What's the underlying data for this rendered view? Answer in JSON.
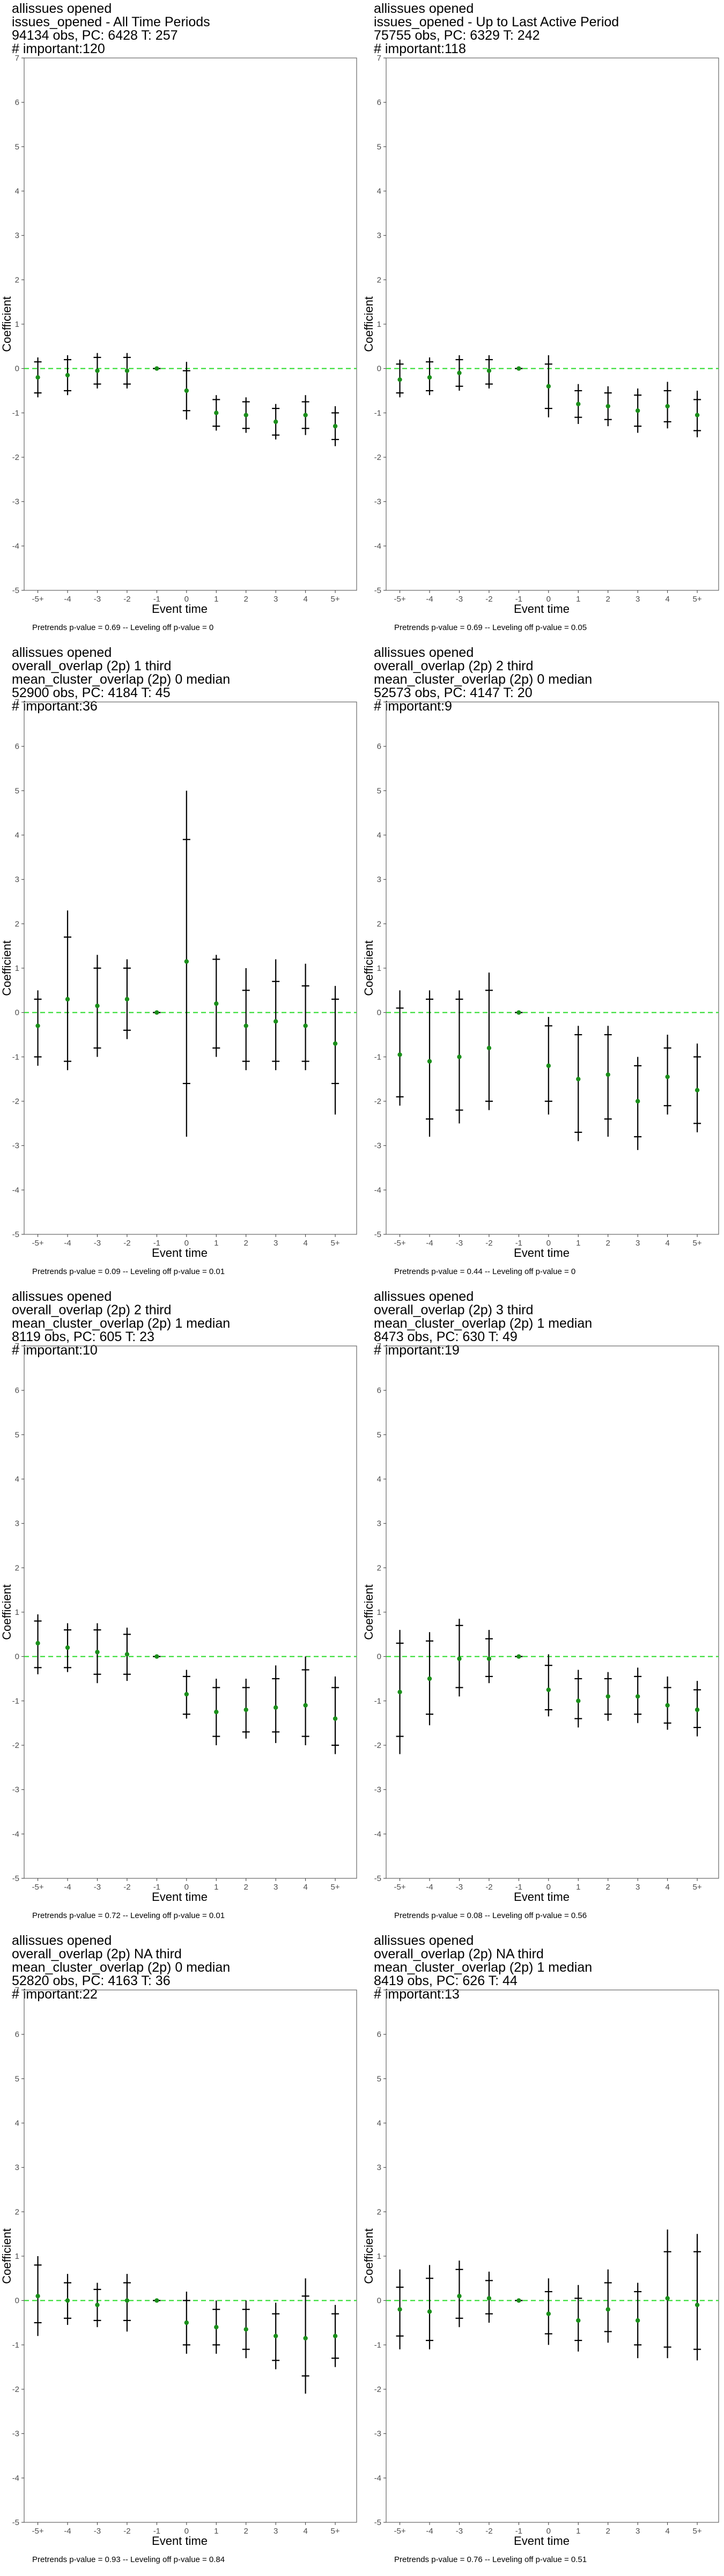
{
  "colors": {
    "estimate": "#1a8f1a",
    "reference_line": "#33dd33",
    "error_bar": "#000000",
    "panel_border": "#666666"
  },
  "chart_data": [
    {
      "type": "scatter",
      "title_lines": [
        "allissues opened",
        "issues_opened - All Time Periods",
        "94134 obs, PC: 6428 T: 257",
        "# important:120"
      ],
      "xlabel": "Event time",
      "ylabel": "Coefficient",
      "ylim": [
        -5,
        7
      ],
      "yticks": [
        -5,
        -4,
        -3,
        -2,
        -1,
        0,
        1,
        2,
        3,
        4,
        5,
        6,
        7
      ],
      "categories": [
        "-5+",
        "-4",
        "-3",
        "-2",
        "-1",
        "0",
        "1",
        "2",
        "3",
        "4",
        "5+"
      ],
      "estimate": [
        -0.2,
        -0.15,
        -0.05,
        -0.05,
        0,
        -0.5,
        -1.0,
        -1.05,
        -1.2,
        -1.05,
        -1.3
      ],
      "ci90": [
        [
          -0.55,
          0.15
        ],
        [
          -0.5,
          0.2
        ],
        [
          -0.35,
          0.25
        ],
        [
          -0.35,
          0.25
        ],
        [
          0,
          0
        ],
        [
          -0.95,
          -0.05
        ],
        [
          -1.3,
          -0.7
        ],
        [
          -1.35,
          -0.75
        ],
        [
          -1.5,
          -0.9
        ],
        [
          -1.35,
          -0.75
        ],
        [
          -1.6,
          -1.0
        ]
      ],
      "ci95": [
        [
          -0.65,
          0.25
        ],
        [
          -0.6,
          0.3
        ],
        [
          -0.45,
          0.35
        ],
        [
          -0.45,
          0.35
        ],
        [
          0,
          0
        ],
        [
          -1.15,
          0.15
        ],
        [
          -1.4,
          -0.6
        ],
        [
          -1.45,
          -0.65
        ],
        [
          -1.6,
          -0.8
        ],
        [
          -1.5,
          -0.6
        ],
        [
          -1.75,
          -0.85
        ]
      ],
      "reference_line": 0,
      "footnote": "Pretrends p-value = 0.69 -- Leveling off p-value = 0"
    },
    {
      "type": "scatter",
      "title_lines": [
        "allissues opened",
        "issues_opened - Up to Last Active Period",
        "75755 obs, PC: 6329 T: 242",
        "# important:118"
      ],
      "xlabel": "Event time",
      "ylabel": "Coefficient",
      "ylim": [
        -5,
        7
      ],
      "yticks": [
        -5,
        -4,
        -3,
        -2,
        -1,
        0,
        1,
        2,
        3,
        4,
        5,
        6,
        7
      ],
      "categories": [
        "-5+",
        "-4",
        "-3",
        "-2",
        "-1",
        "0",
        "1",
        "2",
        "3",
        "4",
        "5+"
      ],
      "estimate": [
        -0.25,
        -0.2,
        -0.1,
        -0.05,
        0,
        -0.4,
        -0.8,
        -0.85,
        -0.95,
        -0.85,
        -1.05
      ],
      "ci90": [
        [
          -0.55,
          0.1
        ],
        [
          -0.5,
          0.15
        ],
        [
          -0.4,
          0.2
        ],
        [
          -0.35,
          0.2
        ],
        [
          0,
          0
        ],
        [
          -0.9,
          0.1
        ],
        [
          -1.1,
          -0.5
        ],
        [
          -1.15,
          -0.55
        ],
        [
          -1.3,
          -0.6
        ],
        [
          -1.2,
          -0.5
        ],
        [
          -1.4,
          -0.7
        ]
      ],
      "ci95": [
        [
          -0.65,
          0.2
        ],
        [
          -0.6,
          0.25
        ],
        [
          -0.5,
          0.3
        ],
        [
          -0.45,
          0.3
        ],
        [
          0,
          0
        ],
        [
          -1.1,
          0.3
        ],
        [
          -1.25,
          -0.35
        ],
        [
          -1.3,
          -0.4
        ],
        [
          -1.45,
          -0.45
        ],
        [
          -1.35,
          -0.3
        ],
        [
          -1.55,
          -0.5
        ]
      ],
      "reference_line": 0,
      "footnote": "Pretrends p-value = 0.69 -- Leveling off p-value = 0.05"
    },
    {
      "type": "scatter",
      "title_lines": [
        "allissues opened",
        "overall_overlap (2p) 1 third",
        "mean_cluster_overlap (2p) 0 median",
        "52900 obs, PC: 4184 T: 45",
        "# important:36"
      ],
      "xlabel": "Event time",
      "ylabel": "Coefficient",
      "ylim": [
        -5,
        7
      ],
      "yticks": [
        -5,
        -4,
        -3,
        -2,
        -1,
        0,
        1,
        2,
        3,
        4,
        5,
        6,
        7
      ],
      "categories": [
        "-5+",
        "-4",
        "-3",
        "-2",
        "-1",
        "0",
        "1",
        "2",
        "3",
        "4",
        "5+"
      ],
      "estimate": [
        -0.3,
        0.3,
        0.15,
        0.3,
        0,
        1.15,
        0.2,
        -0.3,
        -0.2,
        -0.3,
        -0.7
      ],
      "ci90": [
        [
          -1.0,
          0.3
        ],
        [
          -1.1,
          1.7
        ],
        [
          -0.8,
          1.0
        ],
        [
          -0.4,
          1.0
        ],
        [
          0,
          0
        ],
        [
          -1.6,
          3.9
        ],
        [
          -0.8,
          1.2
        ],
        [
          -1.1,
          0.5
        ],
        [
          -1.1,
          0.7
        ],
        [
          -1.1,
          0.6
        ],
        [
          -1.6,
          0.3
        ]
      ],
      "ci95": [
        [
          -1.2,
          0.5
        ],
        [
          -1.3,
          2.3
        ],
        [
          -1.0,
          1.3
        ],
        [
          -0.6,
          1.2
        ],
        [
          0,
          0
        ],
        [
          -2.8,
          5.0
        ],
        [
          -1.0,
          1.3
        ],
        [
          -1.3,
          1.0
        ],
        [
          -1.3,
          1.2
        ],
        [
          -1.3,
          1.1
        ],
        [
          -2.3,
          0.6
        ]
      ],
      "reference_line": 0,
      "footnote": "Pretrends p-value = 0.09 -- Leveling off p-value = 0.01"
    },
    {
      "type": "scatter",
      "title_lines": [
        "allissues opened",
        "overall_overlap (2p) 2 third",
        "mean_cluster_overlap (2p) 0 median",
        "52573 obs, PC: 4147 T: 20",
        "# important:9"
      ],
      "xlabel": "Event time",
      "ylabel": "Coefficient",
      "ylim": [
        -5,
        7
      ],
      "yticks": [
        -5,
        -4,
        -3,
        -2,
        -1,
        0,
        1,
        2,
        3,
        4,
        5,
        6,
        7
      ],
      "categories": [
        "-5+",
        "-4",
        "-3",
        "-2",
        "-1",
        "0",
        "1",
        "2",
        "3",
        "4",
        "5+"
      ],
      "estimate": [
        -0.95,
        -1.1,
        -1.0,
        -0.8,
        0,
        -1.2,
        -1.5,
        -1.4,
        -2.0,
        -1.45,
        -1.75
      ],
      "ci90": [
        [
          -1.9,
          0.1
        ],
        [
          -2.4,
          0.3
        ],
        [
          -2.2,
          0.3
        ],
        [
          -2.0,
          0.5
        ],
        [
          0,
          0
        ],
        [
          -2.0,
          -0.3
        ],
        [
          -2.7,
          -0.5
        ],
        [
          -2.4,
          -0.5
        ],
        [
          -2.8,
          -1.2
        ],
        [
          -2.1,
          -0.8
        ],
        [
          -2.5,
          -1.0
        ]
      ],
      "ci95": [
        [
          -2.1,
          0.5
        ],
        [
          -2.8,
          0.5
        ],
        [
          -2.5,
          0.5
        ],
        [
          -2.2,
          0.9
        ],
        [
          0,
          0
        ],
        [
          -2.3,
          -0.1
        ],
        [
          -2.9,
          -0.3
        ],
        [
          -2.8,
          -0.3
        ],
        [
          -3.1,
          -1.0
        ],
        [
          -2.3,
          -0.5
        ],
        [
          -2.7,
          -0.7
        ]
      ],
      "reference_line": 0,
      "footnote": "Pretrends p-value = 0.44 -- Leveling off p-value = 0"
    },
    {
      "type": "scatter",
      "title_lines": [
        "allissues opened",
        "overall_overlap (2p) 2 third",
        "mean_cluster_overlap (2p) 1 median",
        "8119 obs, PC: 605 T: 23",
        "# important:10"
      ],
      "xlabel": "Event time",
      "ylabel": "Coefficient",
      "ylim": [
        -5,
        7
      ],
      "yticks": [
        -5,
        -4,
        -3,
        -2,
        -1,
        0,
        1,
        2,
        3,
        4,
        5,
        6,
        7
      ],
      "categories": [
        "-5+",
        "-4",
        "-3",
        "-2",
        "-1",
        "0",
        "1",
        "2",
        "3",
        "4",
        "5+"
      ],
      "estimate": [
        0.3,
        0.2,
        0.1,
        0.05,
        0,
        -0.85,
        -1.25,
        -1.2,
        -1.15,
        -1.1,
        -1.4
      ],
      "ci90": [
        [
          -0.25,
          0.8
        ],
        [
          -0.25,
          0.6
        ],
        [
          -0.4,
          0.6
        ],
        [
          -0.4,
          0.5
        ],
        [
          0,
          0
        ],
        [
          -1.3,
          -0.45
        ],
        [
          -1.8,
          -0.7
        ],
        [
          -1.7,
          -0.7
        ],
        [
          -1.7,
          -0.5
        ],
        [
          -1.8,
          -0.3
        ],
        [
          -2.0,
          -0.7
        ]
      ],
      "ci95": [
        [
          -0.4,
          0.95
        ],
        [
          -0.35,
          0.75
        ],
        [
          -0.6,
          0.75
        ],
        [
          -0.55,
          0.65
        ],
        [
          0,
          0
        ],
        [
          -1.4,
          -0.3
        ],
        [
          -2.0,
          -0.5
        ],
        [
          -1.85,
          -0.5
        ],
        [
          -1.95,
          -0.2
        ],
        [
          -2.0,
          0.0
        ],
        [
          -2.2,
          -0.45
        ]
      ],
      "reference_line": 0,
      "footnote": "Pretrends p-value = 0.72 -- Leveling off p-value = 0.01"
    },
    {
      "type": "scatter",
      "title_lines": [
        "allissues opened",
        "overall_overlap (2p) 3 third",
        "mean_cluster_overlap (2p) 1 median",
        "8473 obs, PC: 630 T: 49",
        "# important:19"
      ],
      "xlabel": "Event time",
      "ylabel": "Coefficient",
      "ylim": [
        -5,
        7
      ],
      "yticks": [
        -5,
        -4,
        -3,
        -2,
        -1,
        0,
        1,
        2,
        3,
        4,
        5,
        6,
        7
      ],
      "categories": [
        "-5+",
        "-4",
        "-3",
        "-2",
        "-1",
        "0",
        "1",
        "2",
        "3",
        "4",
        "5+"
      ],
      "estimate": [
        -0.8,
        -0.5,
        -0.05,
        -0.05,
        0,
        -0.75,
        -1.0,
        -0.9,
        -0.9,
        -1.1,
        -1.2
      ],
      "ci90": [
        [
          -1.8,
          0.3
        ],
        [
          -1.3,
          0.35
        ],
        [
          -0.7,
          0.7
        ],
        [
          -0.45,
          0.4
        ],
        [
          0,
          0
        ],
        [
          -1.2,
          -0.2
        ],
        [
          -1.4,
          -0.5
        ],
        [
          -1.3,
          -0.5
        ],
        [
          -1.3,
          -0.45
        ],
        [
          -1.5,
          -0.7
        ],
        [
          -1.6,
          -0.75
        ]
      ],
      "ci95": [
        [
          -2.2,
          0.6
        ],
        [
          -1.55,
          0.55
        ],
        [
          -0.9,
          0.85
        ],
        [
          -0.6,
          0.6
        ],
        [
          0,
          0
        ],
        [
          -1.35,
          0.05
        ],
        [
          -1.6,
          -0.3
        ],
        [
          -1.45,
          -0.35
        ],
        [
          -1.5,
          -0.25
        ],
        [
          -1.65,
          -0.45
        ],
        [
          -1.8,
          -0.55
        ]
      ],
      "reference_line": 0,
      "footnote": "Pretrends p-value = 0.08 -- Leveling off p-value = 0.56"
    },
    {
      "type": "scatter",
      "title_lines": [
        "allissues opened",
        "overall_overlap (2p) NA third",
        "mean_cluster_overlap (2p) 0 median",
        "52820 obs, PC: 4163 T: 36",
        "# important:22"
      ],
      "xlabel": "Event time",
      "ylabel": "Coefficient",
      "ylim": [
        -5,
        7
      ],
      "yticks": [
        -5,
        -4,
        -3,
        -2,
        -1,
        0,
        1,
        2,
        3,
        4,
        5,
        6,
        7
      ],
      "categories": [
        "-5+",
        "-4",
        "-3",
        "-2",
        "-1",
        "0",
        "1",
        "2",
        "3",
        "4",
        "5+"
      ],
      "estimate": [
        0.1,
        0.0,
        -0.1,
        0.0,
        0,
        -0.5,
        -0.6,
        -0.65,
        -0.8,
        -0.85,
        -0.8
      ],
      "ci90": [
        [
          -0.5,
          0.8
        ],
        [
          -0.4,
          0.4
        ],
        [
          -0.45,
          0.25
        ],
        [
          -0.45,
          0.4
        ],
        [
          0,
          0
        ],
        [
          -1.0,
          0.0
        ],
        [
          -1.0,
          -0.2
        ],
        [
          -1.1,
          -0.2
        ],
        [
          -1.35,
          -0.3
        ],
        [
          -1.7,
          0.1
        ],
        [
          -1.3,
          -0.3
        ]
      ],
      "ci95": [
        [
          -0.8,
          1.0
        ],
        [
          -0.55,
          0.6
        ],
        [
          -0.6,
          0.4
        ],
        [
          -0.7,
          0.6
        ],
        [
          0,
          0
        ],
        [
          -1.2,
          0.2
        ],
        [
          -1.2,
          0.0
        ],
        [
          -1.3,
          0.0
        ],
        [
          -1.55,
          -0.05
        ],
        [
          -2.1,
          0.5
        ],
        [
          -1.5,
          -0.1
        ]
      ],
      "reference_line": 0,
      "footnote": "Pretrends p-value = 0.93 -- Leveling off p-value = 0.84"
    },
    {
      "type": "scatter",
      "title_lines": [
        "allissues opened",
        "overall_overlap (2p) NA third",
        "mean_cluster_overlap (2p) 1 median",
        "8419 obs, PC: 626 T: 44",
        "# important:13"
      ],
      "xlabel": "Event time",
      "ylabel": "Coefficient",
      "ylim": [
        -5,
        7
      ],
      "yticks": [
        -5,
        -4,
        -3,
        -2,
        -1,
        0,
        1,
        2,
        3,
        4,
        5,
        6,
        7
      ],
      "categories": [
        "-5+",
        "-4",
        "-3",
        "-2",
        "-1",
        "0",
        "1",
        "2",
        "3",
        "4",
        "5+"
      ],
      "estimate": [
        -0.2,
        -0.25,
        0.1,
        0.05,
        0,
        -0.3,
        -0.45,
        -0.2,
        -0.45,
        0.05,
        -0.1
      ],
      "ci90": [
        [
          -0.8,
          0.3
        ],
        [
          -0.9,
          0.5
        ],
        [
          -0.4,
          0.7
        ],
        [
          -0.3,
          0.45
        ],
        [
          0,
          0
        ],
        [
          -0.75,
          0.2
        ],
        [
          -0.9,
          0.05
        ],
        [
          -0.7,
          0.4
        ],
        [
          -1.0,
          0.2
        ],
        [
          -1.05,
          1.1
        ],
        [
          -1.1,
          1.1
        ]
      ],
      "ci95": [
        [
          -1.1,
          0.7
        ],
        [
          -1.1,
          0.8
        ],
        [
          -0.6,
          0.9
        ],
        [
          -0.5,
          0.65
        ],
        [
          0,
          0
        ],
        [
          -1.0,
          0.5
        ],
        [
          -1.15,
          0.35
        ],
        [
          -0.95,
          0.7
        ],
        [
          -1.3,
          0.4
        ],
        [
          -1.3,
          1.6
        ],
        [
          -1.35,
          1.5
        ]
      ],
      "reference_line": 0,
      "footnote": "Pretrends p-value = 0.76 -- Leveling off p-value = 0.51"
    }
  ]
}
